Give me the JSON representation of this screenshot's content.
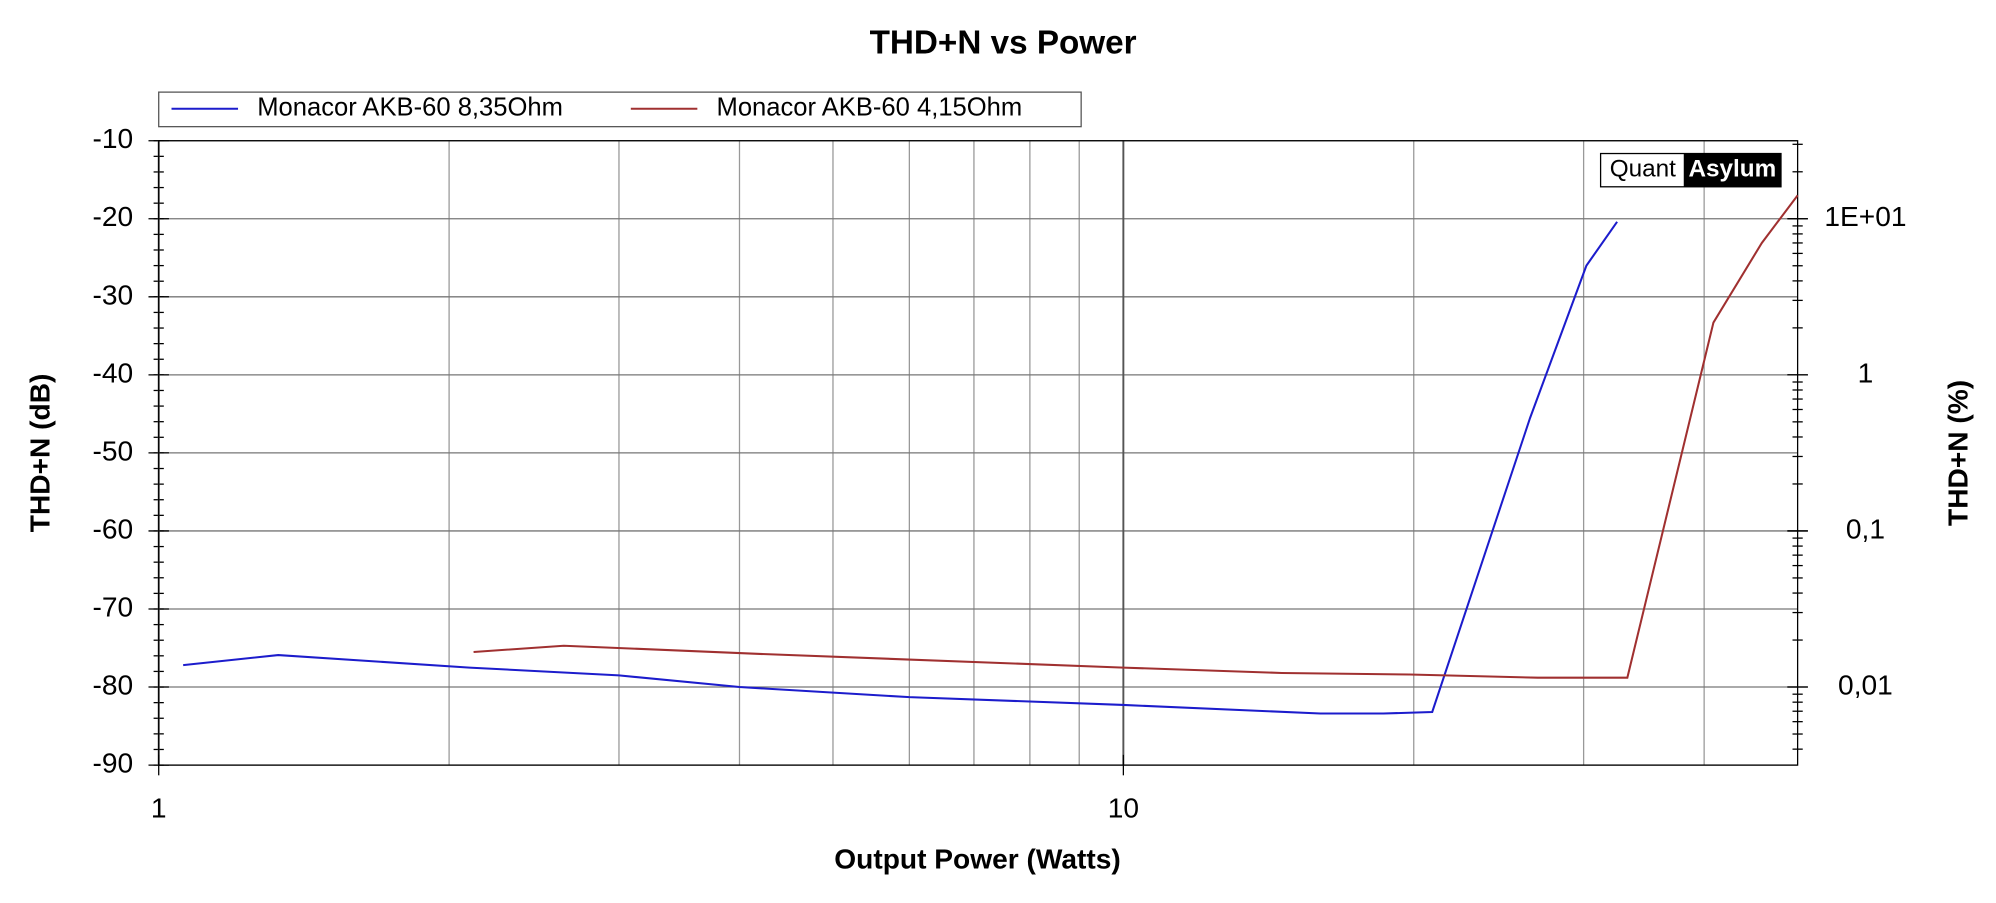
{
  "chart_data": {
    "type": "line",
    "title": "THD+N vs Power",
    "xlabel": "Output Power (Watts)",
    "ylabel": "THD+N (dB)",
    "y2label": "THD+N (%)",
    "xscale": "log",
    "y2scale": "log",
    "grid": true,
    "legend": "top-left",
    "xlim": [
      1,
      50
    ],
    "xticks": [
      1,
      10
    ],
    "ylim": [
      -90,
      -10
    ],
    "yticks": [
      -90,
      -80,
      -70,
      -60,
      -50,
      -40,
      -30,
      -20,
      -10
    ],
    "y2lim": [
      0.0031623,
      31.623
    ],
    "y2ticks": [
      {
        "value": 0.01,
        "label": "0,01"
      },
      {
        "value": 0.1,
        "label": "0,1"
      },
      1,
      {
        "value": 10,
        "label": "1E+01"
      }
    ],
    "logo": [
      "Quant",
      "Asylum"
    ],
    "series": [
      {
        "name": "Monacor AKB-60 8,35Ohm",
        "color": "#1c1ccc",
        "x": [
          1.06,
          1.33,
          2.1,
          3,
          4,
          6,
          10,
          16,
          18.6,
          20.9,
          26.4,
          30.2,
          32.5
        ],
        "values": [
          -77.2,
          -75.9,
          -77.5,
          -78.5,
          -80,
          -81.3,
          -82.3,
          -83.4,
          -83.4,
          -83.2,
          -45.5,
          -26,
          -20.4
        ]
      },
      {
        "name": "Monacor AKB-60 4,15Ohm",
        "color": "#a03030",
        "x": [
          2.12,
          2.63,
          4.29,
          10,
          14.6,
          19.8,
          26.9,
          33.3,
          40.9,
          45.9,
          50
        ],
        "values": [
          -75.5,
          -74.7,
          -75.8,
          -77.5,
          -78.2,
          -78.4,
          -78.8,
          -78.8,
          -33.3,
          -23.1,
          -17
        ]
      }
    ]
  }
}
